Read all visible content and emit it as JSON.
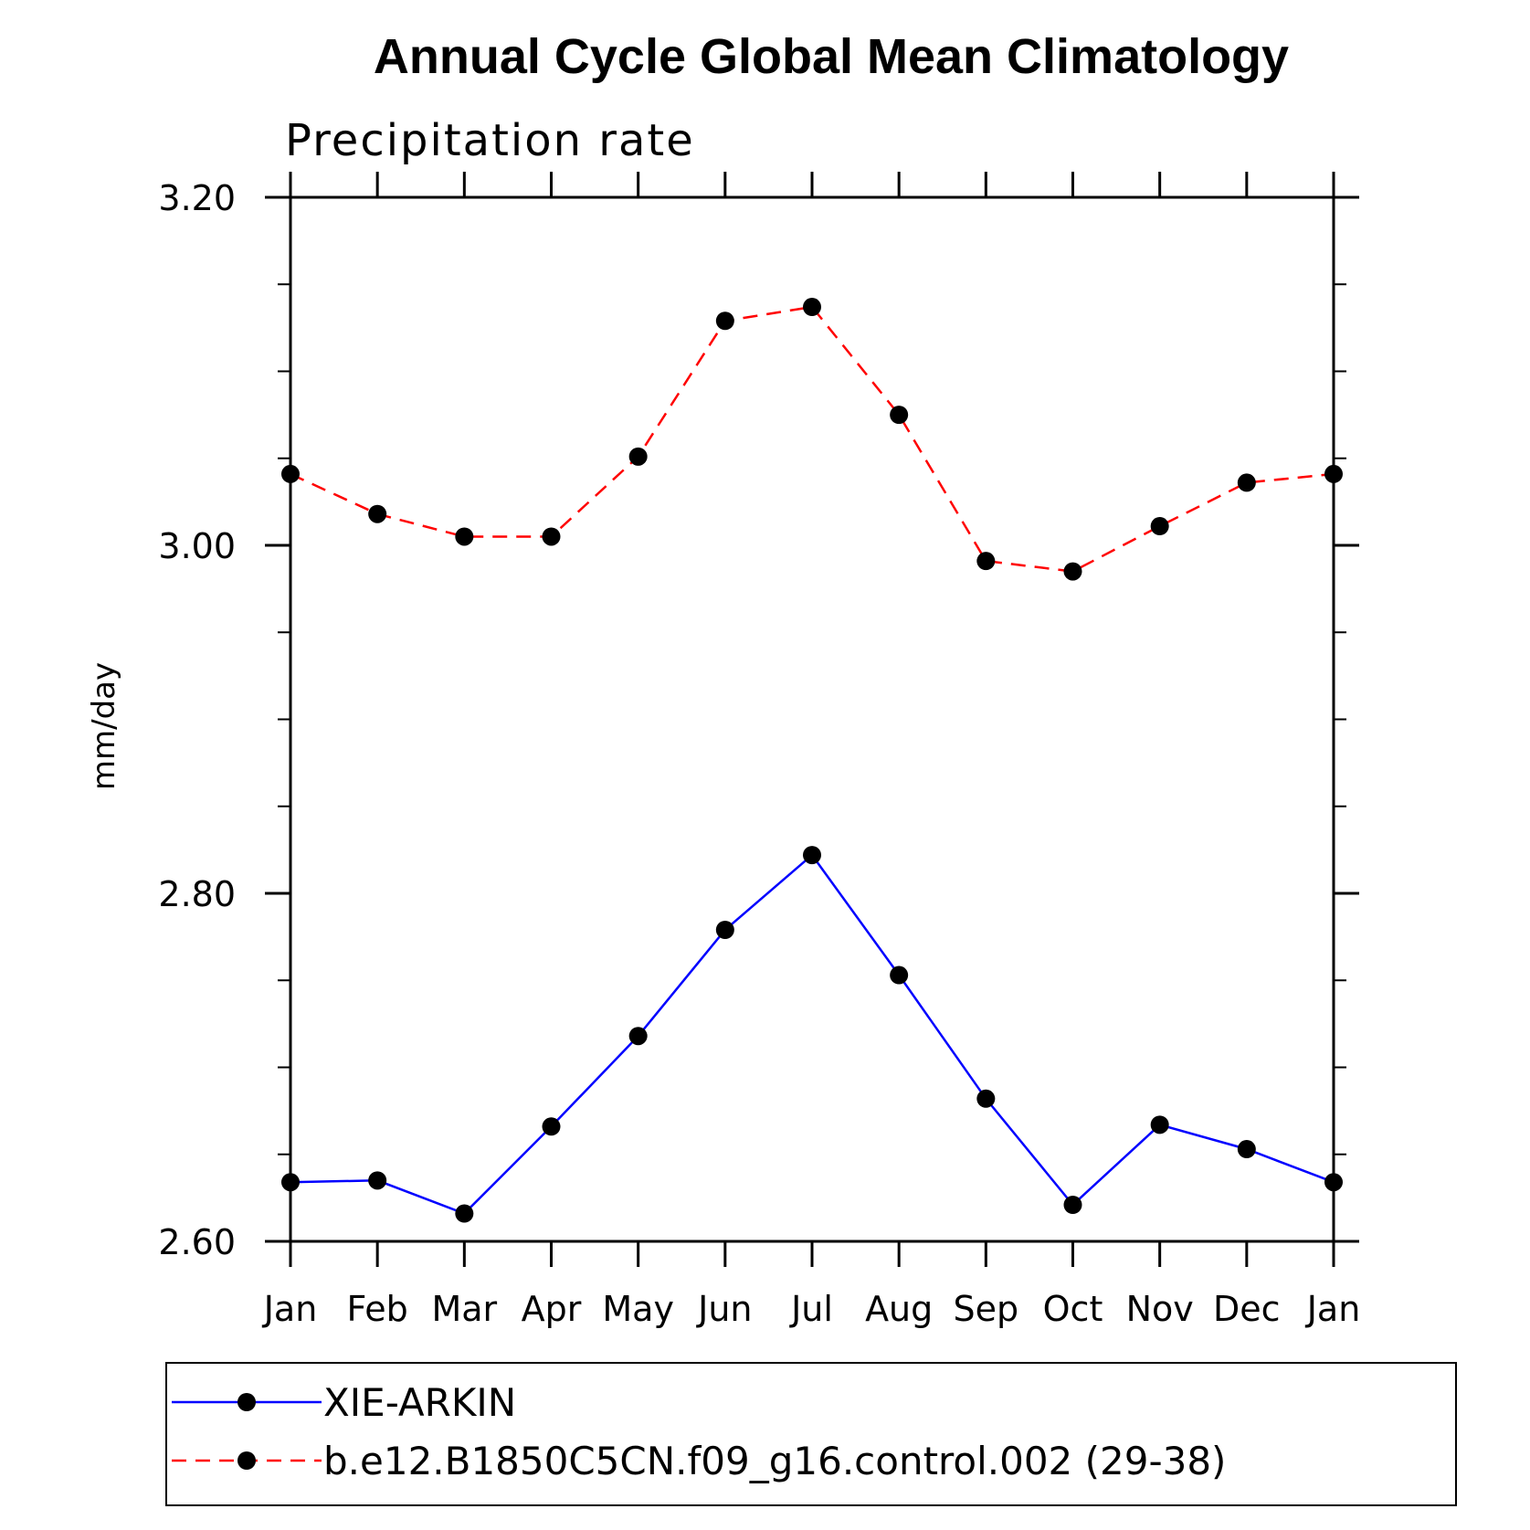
{
  "chart_data": {
    "type": "line",
    "title": "Annual Cycle Global Mean Climatology",
    "subtitle": "Precipitation rate",
    "xlabel": "",
    "ylabel": "mm/day",
    "categories": [
      "Jan",
      "Feb",
      "Mar",
      "Apr",
      "May",
      "Jun",
      "Jul",
      "Aug",
      "Sep",
      "Oct",
      "Nov",
      "Dec",
      "Jan"
    ],
    "ylim": [
      2.6,
      3.2
    ],
    "yticks": [
      2.6,
      2.8,
      3.0,
      3.2
    ],
    "ytick_labels": [
      "2.60",
      "2.80",
      "3.00",
      "3.20"
    ],
    "y_minor_step": 0.05,
    "series": [
      {
        "name": "XIE-ARKIN",
        "color": "#0000ff",
        "dash": "solid",
        "marker": "circle",
        "values": [
          2.634,
          2.635,
          2.616,
          2.666,
          2.718,
          2.779,
          2.822,
          2.753,
          2.682,
          2.621,
          2.667,
          2.653,
          2.634
        ]
      },
      {
        "name": "b.e12.B1850C5CN.f09_g16.control.002 (29-38)",
        "color": "#ff0000",
        "dash": "dashed",
        "marker": "circle",
        "values": [
          3.041,
          3.018,
          3.005,
          3.005,
          3.051,
          3.129,
          3.137,
          3.075,
          2.991,
          2.985,
          3.011,
          3.036,
          3.041
        ]
      }
    ],
    "grid": false,
    "legend_position": "bottom"
  }
}
